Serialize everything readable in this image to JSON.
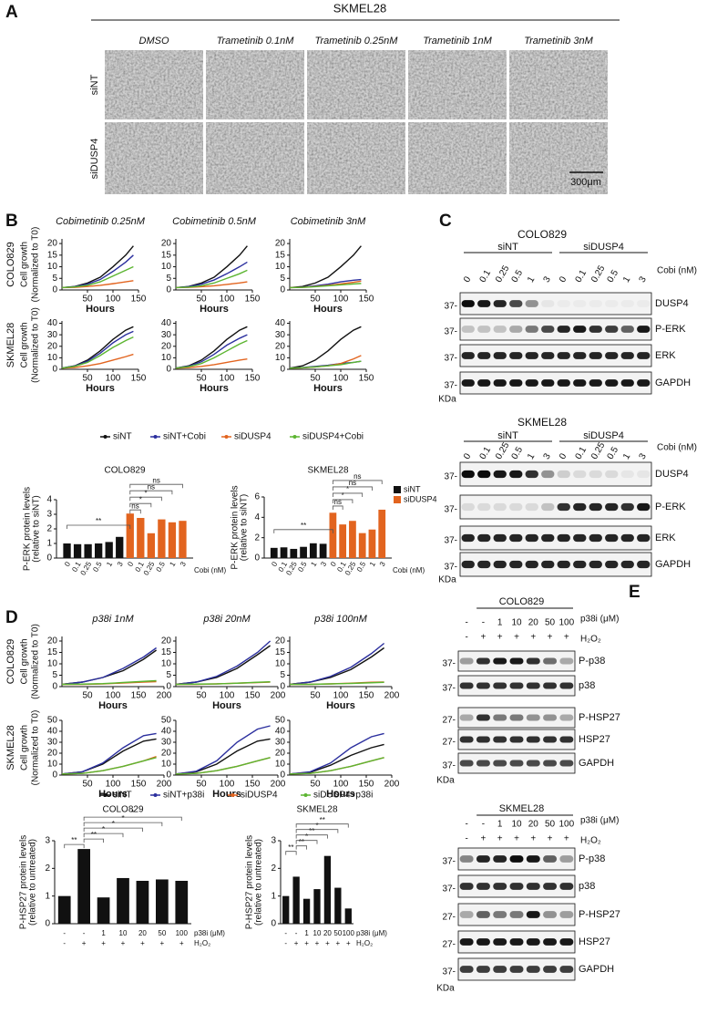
{
  "panels": {
    "A": {
      "letter": "A",
      "title": "SKMEL28",
      "columns": [
        "DMSO",
        "Trametinib 0.1nM",
        "Trametinib 0.25nM",
        "Trametinib 1nM",
        "Trametinib 3nM"
      ],
      "rows": [
        "siNT",
        "siDUSP4"
      ],
      "scale_bar": "300μm"
    },
    "B": {
      "letter": "B",
      "growth": {
        "titles": [
          "Cobimetinib 0.25nM",
          "Cobimetinib 0.5nM",
          "Cobimetinib 3nM"
        ],
        "ylabel": [
          "Cell growth",
          "(Normalized to T0)"
        ],
        "xlabel": "Hours",
        "x": [
          0,
          25,
          50,
          75,
          100,
          125,
          140
        ],
        "xlim": [
          0,
          150
        ],
        "xticks": [
          50,
          100,
          150
        ],
        "legend": [
          {
            "name": "siNT",
            "color": "#111111"
          },
          {
            "name": "siNT+Cobi",
            "color": "#2b2f9e"
          },
          {
            "name": "siDUSP4",
            "color": "#e2641f"
          },
          {
            "name": "siDUSP4+Cobi",
            "color": "#5cb531"
          }
        ],
        "rows": [
          {
            "cell_line": "COLO829",
            "ylim": [
              0,
              22
            ],
            "yticks": [
              0,
              5,
              10,
              15,
              20
            ],
            "charts": [
              [
                [
                  1,
                  1.5,
                  3,
                  5.5,
                  10,
                  15,
                  19
                ],
                [
                  1,
                  1.4,
                  2.5,
                  4.5,
                  8,
                  12,
                  15
                ],
                [
                  1,
                  1.1,
                  1.5,
                  2,
                  2.7,
                  3.5,
                  4
                ],
                [
                  1,
                  1.3,
                  2,
                  3.5,
                  6,
                  8.5,
                  10
                ]
              ],
              [
                [
                  1,
                  1.5,
                  3,
                  5.5,
                  10,
                  15,
                  19
                ],
                [
                  1,
                  1.4,
                  2.5,
                  4.3,
                  7,
                  10,
                  12
                ],
                [
                  1,
                  1.1,
                  1.4,
                  1.8,
                  2.4,
                  3,
                  3.5
                ],
                [
                  1,
                  1.2,
                  1.8,
                  3,
                  5,
                  7,
                  8.5
                ]
              ],
              [
                [
                  1,
                  1.5,
                  3,
                  5.5,
                  10,
                  15,
                  19
                ],
                [
                  1,
                  1.2,
                  1.8,
                  2.5,
                  3.5,
                  4.2,
                  4.5
                ],
                [
                  1,
                  1.1,
                  1.5,
                  2,
                  2.6,
                  3.3,
                  3.8
                ],
                [
                  1,
                  1.1,
                  1.4,
                  1.8,
                  2.2,
                  2.6,
                  2.8
                ]
              ]
            ]
          },
          {
            "cell_line": "SKMEL28",
            "ylim": [
              0,
              42
            ],
            "yticks": [
              0,
              10,
              20,
              30,
              40
            ],
            "charts": [
              [
                [
                  1,
                  3,
                  8,
                  16,
                  26,
                  34,
                  37
                ],
                [
                  1,
                  2.8,
                  7,
                  14,
                  23,
                  30,
                  33
                ],
                [
                  1,
                  1.5,
                  3,
                  5,
                  8,
                  11,
                  13
                ],
                [
                  1,
                  2.5,
                  6,
                  12,
                  19,
                  25,
                  28
                ]
              ],
              [
                [
                  1,
                  3,
                  8,
                  16,
                  26,
                  34,
                  37
                ],
                [
                  1,
                  2.6,
                  6.5,
                  13,
                  21,
                  27,
                  30
                ],
                [
                  1,
                  1.4,
                  2.5,
                  4,
                  6,
                  8,
                  9
                ],
                [
                  1,
                  2.2,
                  5,
                  10,
                  16,
                  22,
                  25
                ]
              ],
              [
                [
                  1,
                  3,
                  8,
                  16,
                  26,
                  34,
                  37
                ],
                [
                  1,
                  1.5,
                  2.5,
                  3.5,
                  5,
                  6,
                  7
                ],
                [
                  1,
                  1.2,
                  2,
                  3,
                  5,
                  9,
                  12
                ],
                [
                  1,
                  1.3,
                  2,
                  3,
                  4,
                  6,
                  7
                ]
              ]
            ]
          }
        ]
      },
      "bars": {
        "ylabel": [
          "P-ERK protein levels",
          "(relative to siNT)"
        ],
        "categories": [
          "0",
          "0.1",
          "0.25",
          "0.5",
          "1",
          "3"
        ],
        "unit": "Cobi (nM)",
        "series": [
          {
            "name": "siNT",
            "color": "#111111"
          },
          {
            "name": "siDUSP4",
            "color": "#e2641f"
          }
        ],
        "charts": [
          {
            "title": "COLO829",
            "ylim": [
              0,
              4
            ],
            "yticks": [
              0,
              1,
              2,
              3,
              4
            ],
            "values": [
              [
                1,
                0.95,
                0.95,
                1.0,
                1.1,
                1.45
              ],
              [
                3.05,
                2.75,
                1.7,
                2.65,
                2.45,
                2.55
              ]
            ],
            "significance": [
              "**",
              "ns",
              "*",
              "*",
              "ns",
              "ns"
            ]
          },
          {
            "title": "SKMEL28",
            "ylim": [
              0,
              6
            ],
            "yticks": [
              0,
              2,
              4,
              6
            ],
            "values": [
              [
                1,
                1.05,
                0.9,
                1.1,
                1.45,
                1.4
              ],
              [
                4.45,
                3.3,
                3.65,
                2.45,
                2.8,
                4.75
              ]
            ],
            "significance": [
              "**",
              "ns",
              "*",
              "*",
              "ns",
              "ns"
            ]
          }
        ]
      }
    },
    "C": {
      "letter": "C",
      "lane_unit": "Cobi (nM)",
      "groups": [
        "siNT",
        "siDUSP4"
      ],
      "lanes": [
        "0",
        "0.1",
        "0.25",
        "0.5",
        "1",
        "3"
      ],
      "kda": "KDa",
      "blots": [
        {
          "title": "COLO829",
          "rows": [
            {
              "label": "DUSP4",
              "mw": "37-"
            },
            {
              "label": "P-ERK",
              "mw": "37-"
            },
            {
              "label": "ERK",
              "mw": "37-"
            },
            {
              "label": "GAPDH",
              "mw": "37-"
            }
          ]
        },
        {
          "title": "SKMEL28",
          "rows": [
            {
              "label": "DUSP4",
              "mw": "37-"
            },
            {
              "label": "P-ERK",
              "mw": "37-"
            },
            {
              "label": "ERK",
              "mw": "37-"
            },
            {
              "label": "GAPDH",
              "mw": "37-"
            }
          ]
        }
      ]
    },
    "D": {
      "letter": "D",
      "growth": {
        "titles": [
          "p38i 1nM",
          "p38i 20nM",
          "p38i 100nM"
        ],
        "ylabel": [
          "Cell growth",
          "(Normalized to T0)"
        ],
        "xlabel": "Hours",
        "x": [
          0,
          40,
          80,
          120,
          160,
          185
        ],
        "xlim": [
          0,
          200
        ],
        "xticks": [
          50,
          100,
          150,
          200
        ],
        "legend": [
          {
            "name": "siNT",
            "color": "#111111"
          },
          {
            "name": "siNT+p38i",
            "color": "#2b2f9e"
          },
          {
            "name": "siDUSP4",
            "color": "#e2641f"
          },
          {
            "name": "siDUSP4+p38i",
            "color": "#5cb531"
          }
        ],
        "rows": [
          {
            "cell_line": "COLO829",
            "ylim": [
              0,
              22
            ],
            "yticks": [
              0,
              5,
              10,
              15,
              20
            ],
            "charts": [
              [
                [
                  1,
                  2,
                  4,
                  7,
                  12,
                  16
                ],
                [
                  1,
                  2,
                  4,
                  8,
                  13,
                  17
                ],
                [
                  1,
                  1,
                  1.2,
                  1.6,
                  2,
                  2.2
                ],
                [
                  1,
                  1.1,
                  1.3,
                  1.8,
                  2.3,
                  2.6
                ]
              ],
              [
                [
                  1,
                  2,
                  4,
                  8,
                  14,
                  18
                ],
                [
                  1,
                  2,
                  4.5,
                  9,
                  15,
                  20
                ],
                [
                  1,
                  1,
                  1.2,
                  1.5,
                  1.8,
                  2
                ],
                [
                  1,
                  1.1,
                  1.2,
                  1.5,
                  1.9,
                  2.1
                ]
              ],
              [
                [
                  1,
                  2,
                  4,
                  7.5,
                  13,
                  17
                ],
                [
                  1,
                  2,
                  4.5,
                  8.5,
                  14.5,
                  19
                ],
                [
                  1,
                  1,
                  1.2,
                  1.5,
                  1.9,
                  2
                ],
                [
                  1,
                  1,
                  1.2,
                  1.4,
                  1.7,
                  1.9
                ]
              ]
            ]
          },
          {
            "cell_line": "SKMEL28",
            "ylim": [
              0,
              50
            ],
            "yticks": [
              0,
              10,
              20,
              30,
              40,
              50
            ],
            "charts": [
              [
                [
                  1,
                  3,
                  10,
                  22,
                  31,
                  33
                ],
                [
                  1,
                  3,
                  11,
                  25,
                  36,
                  38
                ],
                [
                  1,
                  1.5,
                  4,
                  8,
                  13,
                  17
                ],
                [
                  1,
                  1.5,
                  4,
                  8,
                  13,
                  16
                ]
              ],
              [
                [
                  1,
                  3,
                  10,
                  22,
                  31,
                  33
                ],
                [
                  1,
                  3.5,
                  13,
                  30,
                  42,
                  45
                ],
                [
                  1,
                  1.5,
                  4,
                  8,
                  13,
                  16
                ],
                [
                  1,
                  1.5,
                  4,
                  8,
                  13,
                  16
                ]
              ],
              [
                [
                  1,
                  2.5,
                  9,
                  18,
                  25,
                  28
                ],
                [
                  1,
                  3,
                  11,
                  25,
                  35,
                  38
                ],
                [
                  1,
                  1.5,
                  4,
                  8,
                  13,
                  16
                ],
                [
                  1,
                  1.5,
                  4,
                  8,
                  13,
                  16
                ]
              ]
            ]
          }
        ]
      },
      "bars": {
        "ylabel": [
          "P-HSP27 protein levels",
          "(relative to untreated)"
        ],
        "p38i": [
          "-",
          "-",
          "1",
          "10",
          "20",
          "50",
          "100"
        ],
        "h2o2": [
          "-",
          "+",
          "+",
          "+",
          "+",
          "+",
          "+"
        ],
        "p38i_label": "p38i (μM)",
        "h2o2_label": "H₂O₂",
        "color": "#111111",
        "charts": [
          {
            "title": "COLO829",
            "ylim": [
              0,
              3
            ],
            "yticks": [
              0,
              1,
              2,
              3
            ],
            "values": [
              1,
              2.7,
              0.95,
              1.65,
              1.55,
              1.6,
              1.55
            ],
            "significance": [
              "**",
              "**",
              "*",
              "*",
              "*",
              "*"
            ]
          },
          {
            "title": "SKMEL28",
            "ylim": [
              0,
              3
            ],
            "yticks": [
              0,
              1,
              2,
              3
            ],
            "values": [
              1,
              1.7,
              0.9,
              1.25,
              2.45,
              1.3,
              0.55
            ],
            "significance": [
              "**",
              "**",
              "*",
              "**",
              "*",
              "**"
            ]
          }
        ]
      }
    },
    "E": {
      "letter": "E",
      "p38i": [
        "-",
        "-",
        "1",
        "10",
        "20",
        "50",
        "100"
      ],
      "h2o2": [
        "-",
        "+",
        "+",
        "+",
        "+",
        "+",
        "+"
      ],
      "p38i_label": "p38i (μM)",
      "h2o2_label": "H₂O₂",
      "kda": "KDa",
      "blots": [
        {
          "title": "COLO829",
          "rows": [
            {
              "label": "P-p38",
              "mw": "37-"
            },
            {
              "label": "p38",
              "mw": "37-"
            },
            {
              "label": "P-HSP27",
              "mw": "27-"
            },
            {
              "label": "HSP27",
              "mw": "27-"
            },
            {
              "label": "GAPDH",
              "mw": "37-"
            }
          ]
        },
        {
          "title": "SKMEL28",
          "rows": [
            {
              "label": "P-p38",
              "mw": "37-"
            },
            {
              "label": "p38",
              "mw": "37-"
            },
            {
              "label": "P-HSP27",
              "mw": "27-"
            },
            {
              "label": "HSP27",
              "mw": "27-"
            },
            {
              "label": "GAPDH",
              "mw": "37-"
            }
          ]
        }
      ]
    }
  }
}
